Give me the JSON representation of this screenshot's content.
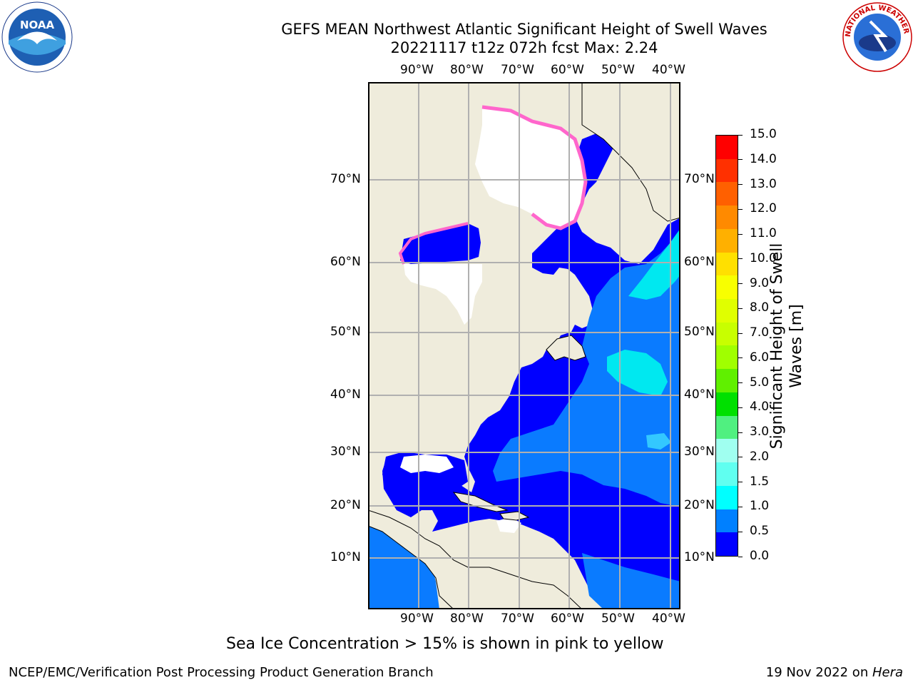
{
  "title_line1": "GEFS MEAN Northwest Atlantic Significant Height of Swell Waves",
  "title_line2": "20221117 t12z 072h fcst   Max: 2.24",
  "lon_ticks": [
    "90°W",
    "80°W",
    "70°W",
    "60°W",
    "50°W",
    "40°W"
  ],
  "lat_ticks": [
    "70°N",
    "60°N",
    "50°N",
    "40°N",
    "30°N",
    "20°N",
    "10°N"
  ],
  "colorbar": {
    "label_line1": "Significant Height of Swell",
    "label_line2": "Waves [m]",
    "ticks": [
      "15.0",
      "14.0",
      "13.0",
      "12.0",
      "11.0",
      "10.0",
      "9.0",
      "8.0",
      "7.0",
      "6.0",
      "5.0",
      "4.0",
      "3.0",
      "2.0",
      "1.5",
      "1.0",
      "0.5",
      "0.0"
    ],
    "colors": [
      "#ff0000",
      "#ff3000",
      "#ff6000",
      "#ff8a00",
      "#ffb000",
      "#ffe000",
      "#f8ff00",
      "#e0ff00",
      "#c8ff00",
      "#a0ff00",
      "#60f000",
      "#00e000",
      "#50f080",
      "#a0fff0",
      "#60fff0",
      "#00ffff",
      "#0080ff",
      "#0000ff"
    ]
  },
  "caption": "Sea Ice Concentration > 15% is shown in pink to yellow",
  "footer_left": "NCEP/EMC/Verification Post Processing Product Generation Branch",
  "footer_right_date": "19 Nov 2022 on ",
  "footer_right_host": "Hera",
  "logos": {
    "noaa_text": "NOAA",
    "nws_text": "NATIONAL WEATHER SERVICE"
  },
  "colors": {
    "land": "#efecdc",
    "ocean_deep": "#0000ff",
    "ocean_mid": "#0a7bff",
    "ocean_cyan": "#00f0f0",
    "ice_edge": "#ff66cc"
  }
}
